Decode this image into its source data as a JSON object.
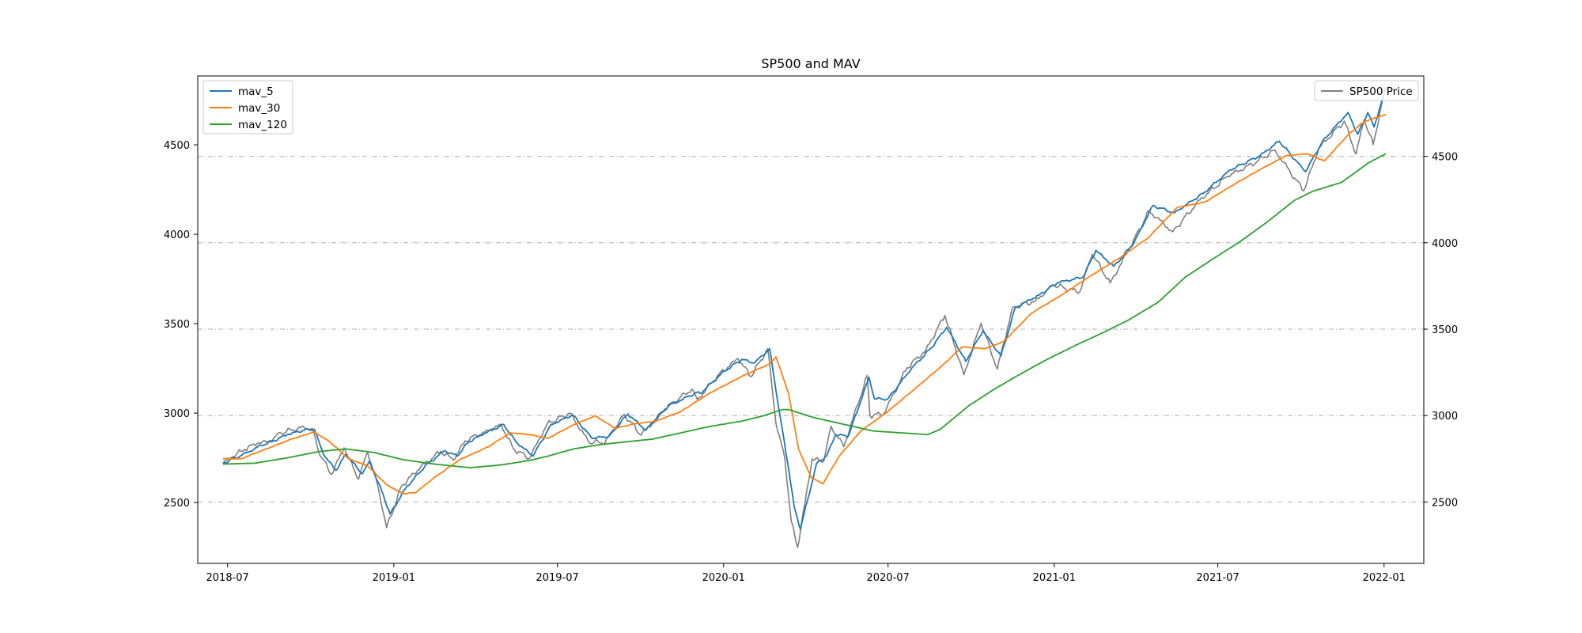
{
  "chart_data": {
    "type": "line",
    "title": "SP500 and MAV",
    "xlabel": "",
    "ylabel_left": "",
    "ylabel_right": "",
    "x_range": [
      "2018-05-29",
      "2022-02-14"
    ],
    "x_ticks": [
      "2018-07",
      "2019-01",
      "2019-07",
      "2020-01",
      "2020-07",
      "2021-01",
      "2021-07",
      "2022-01"
    ],
    "ylim_left": [
      2160,
      4885
    ],
    "ylim_right": [
      2145,
      4965
    ],
    "yticks_left": [
      2500,
      3000,
      3500,
      4000,
      4500
    ],
    "yticks_right": [
      2500,
      3000,
      3500,
      4000,
      4500
    ],
    "grid": "horizontal dash-dot on right axis",
    "legend_left": {
      "placement": "upper-left",
      "entries": [
        "mav_5",
        "mav_30",
        "mav_120"
      ]
    },
    "legend_right": {
      "placement": "upper-right",
      "entries": [
        "SP500 Price"
      ]
    },
    "series": [
      {
        "name": "SP500 Price",
        "axis": "right",
        "color": "#7f7f7f",
        "points": [
          [
            "2018-06-26",
            2724
          ],
          [
            "2018-07-06",
            2760
          ],
          [
            "2018-07-20",
            2805
          ],
          [
            "2018-08-03",
            2840
          ],
          [
            "2018-08-17",
            2850
          ],
          [
            "2018-08-29",
            2900
          ],
          [
            "2018-09-20",
            2930
          ],
          [
            "2018-10-03",
            2925
          ],
          [
            "2018-10-10",
            2785
          ],
          [
            "2018-10-24",
            2660
          ],
          [
            "2018-11-07",
            2813
          ],
          [
            "2018-11-23",
            2632
          ],
          [
            "2018-12-03",
            2790
          ],
          [
            "2018-12-14",
            2600
          ],
          [
            "2018-12-24",
            2351
          ],
          [
            "2019-01-10",
            2596
          ],
          [
            "2019-01-31",
            2704
          ],
          [
            "2019-02-22",
            2792
          ],
          [
            "2019-03-08",
            2743
          ],
          [
            "2019-03-21",
            2854
          ],
          [
            "2019-04-12",
            2907
          ],
          [
            "2019-04-30",
            2945
          ],
          [
            "2019-05-13",
            2811
          ],
          [
            "2019-05-31",
            2752
          ],
          [
            "2019-06-20",
            2954
          ],
          [
            "2019-07-15",
            3014
          ],
          [
            "2019-08-05",
            2844
          ],
          [
            "2019-08-23",
            2847
          ],
          [
            "2019-09-13",
            3007
          ],
          [
            "2019-10-02",
            2887
          ],
          [
            "2019-10-28",
            3039
          ],
          [
            "2019-11-27",
            3153
          ],
          [
            "2019-12-03",
            3093
          ],
          [
            "2019-12-27",
            3240
          ],
          [
            "2020-01-17",
            3330
          ],
          [
            "2020-01-31",
            3225
          ],
          [
            "2020-02-19",
            3386
          ],
          [
            "2020-02-28",
            2954
          ],
          [
            "2020-03-09",
            2746
          ],
          [
            "2020-03-16",
            2386
          ],
          [
            "2020-03-23",
            2237
          ],
          [
            "2020-04-08",
            2749
          ],
          [
            "2020-04-21",
            2736
          ],
          [
            "2020-04-29",
            2939
          ],
          [
            "2020-05-13",
            2820
          ],
          [
            "2020-06-08",
            3232
          ],
          [
            "2020-06-11",
            3002
          ],
          [
            "2020-06-26",
            3009
          ],
          [
            "2020-07-22",
            3276
          ],
          [
            "2020-08-12",
            3380
          ],
          [
            "2020-09-02",
            3580
          ],
          [
            "2020-09-23",
            3237
          ],
          [
            "2020-10-12",
            3534
          ],
          [
            "2020-10-30",
            3270
          ],
          [
            "2020-11-16",
            3627
          ],
          [
            "2020-12-11",
            3663
          ],
          [
            "2020-12-31",
            3756
          ],
          [
            "2021-01-29",
            3714
          ],
          [
            "2021-02-12",
            3934
          ],
          [
            "2021-03-04",
            3768
          ],
          [
            "2021-03-26",
            3974
          ],
          [
            "2021-04-16",
            4185
          ],
          [
            "2021-05-12",
            4063
          ],
          [
            "2021-06-11",
            4247
          ],
          [
            "2021-07-12",
            4385
          ],
          [
            "2021-08-13",
            4468
          ],
          [
            "2021-09-02",
            4537
          ],
          [
            "2021-10-04",
            4300
          ],
          [
            "2021-10-21",
            4549
          ],
          [
            "2021-11-18",
            4704
          ],
          [
            "2021-12-01",
            4513
          ],
          [
            "2021-12-10",
            4712
          ],
          [
            "2021-12-20",
            4568
          ],
          [
            "2021-12-29",
            4793
          ],
          [
            "2022-01-03",
            4900
          ]
        ]
      },
      {
        "name": "mav_5",
        "axis": "left",
        "color": "#1f77b4",
        "points": [
          [
            "2018-06-26",
            2720
          ],
          [
            "2018-07-10",
            2750
          ],
          [
            "2018-07-24",
            2782
          ],
          [
            "2018-08-07",
            2820
          ],
          [
            "2018-08-21",
            2845
          ],
          [
            "2018-09-05",
            2880
          ],
          [
            "2018-09-24",
            2905
          ],
          [
            "2018-10-05",
            2910
          ],
          [
            "2018-10-15",
            2770
          ],
          [
            "2018-10-29",
            2680
          ],
          [
            "2018-11-09",
            2770
          ],
          [
            "2018-11-27",
            2660
          ],
          [
            "2018-12-05",
            2730
          ],
          [
            "2018-12-19",
            2560
          ],
          [
            "2018-12-28",
            2435
          ],
          [
            "2019-01-14",
            2580
          ],
          [
            "2019-02-04",
            2700
          ],
          [
            "2019-02-26",
            2790
          ],
          [
            "2019-03-12",
            2760
          ],
          [
            "2019-03-25",
            2840
          ],
          [
            "2019-04-16",
            2900
          ],
          [
            "2019-05-03",
            2935
          ],
          [
            "2019-05-16",
            2840
          ],
          [
            "2019-06-04",
            2760
          ],
          [
            "2019-06-24",
            2935
          ],
          [
            "2019-07-18",
            2990
          ],
          [
            "2019-08-08",
            2860
          ],
          [
            "2019-08-27",
            2870
          ],
          [
            "2019-09-17",
            2995
          ],
          [
            "2019-10-07",
            2905
          ],
          [
            "2019-11-01",
            3040
          ],
          [
            "2019-12-02",
            3115
          ],
          [
            "2019-12-06",
            3110
          ],
          [
            "2020-01-02",
            3235
          ],
          [
            "2020-01-21",
            3300
          ],
          [
            "2020-02-04",
            3280
          ],
          [
            "2020-02-21",
            3360
          ],
          [
            "2020-03-03",
            3000
          ],
          [
            "2020-03-12",
            2720
          ],
          [
            "2020-03-19",
            2480
          ],
          [
            "2020-03-26",
            2350
          ],
          [
            "2020-04-13",
            2720
          ],
          [
            "2020-04-24",
            2760
          ],
          [
            "2020-05-04",
            2880
          ],
          [
            "2020-05-18",
            2870
          ],
          [
            "2020-06-10",
            3200
          ],
          [
            "2020-06-16",
            3080
          ],
          [
            "2020-07-01",
            3080
          ],
          [
            "2020-07-27",
            3250
          ],
          [
            "2020-08-17",
            3360
          ],
          [
            "2020-09-04",
            3480
          ],
          [
            "2020-09-25",
            3290
          ],
          [
            "2020-10-14",
            3460
          ],
          [
            "2020-11-03",
            3320
          ],
          [
            "2020-11-19",
            3590
          ],
          [
            "2020-12-15",
            3660
          ],
          [
            "2021-01-05",
            3730
          ],
          [
            "2021-02-02",
            3760
          ],
          [
            "2021-02-16",
            3910
          ],
          [
            "2021-03-08",
            3820
          ],
          [
            "2021-03-30",
            3950
          ],
          [
            "2021-04-20",
            4160
          ],
          [
            "2021-05-14",
            4120
          ],
          [
            "2021-06-15",
            4230
          ],
          [
            "2021-07-15",
            4360
          ],
          [
            "2021-08-17",
            4440
          ],
          [
            "2021-09-07",
            4520
          ],
          [
            "2021-10-06",
            4350
          ],
          [
            "2021-10-25",
            4520
          ],
          [
            "2021-11-22",
            4680
          ],
          [
            "2021-12-03",
            4560
          ],
          [
            "2021-12-14",
            4680
          ],
          [
            "2021-12-21",
            4600
          ],
          [
            "2022-01-03",
            4820
          ]
        ]
      },
      {
        "name": "mav_30",
        "axis": "left",
        "color": "#ff7f0e",
        "points": [
          [
            "2018-06-26",
            2745
          ],
          [
            "2018-07-16",
            2745
          ],
          [
            "2018-08-13",
            2800
          ],
          [
            "2018-09-10",
            2855
          ],
          [
            "2018-10-05",
            2895
          ],
          [
            "2018-10-22",
            2840
          ],
          [
            "2018-11-12",
            2745
          ],
          [
            "2018-12-03",
            2705
          ],
          [
            "2018-12-24",
            2600
          ],
          [
            "2019-01-11",
            2550
          ],
          [
            "2019-01-25",
            2555
          ],
          [
            "2019-02-15",
            2640
          ],
          [
            "2019-03-15",
            2740
          ],
          [
            "2019-04-15",
            2810
          ],
          [
            "2019-05-10",
            2890
          ],
          [
            "2019-05-31",
            2880
          ],
          [
            "2019-06-21",
            2860
          ],
          [
            "2019-07-19",
            2935
          ],
          [
            "2019-08-12",
            2985
          ],
          [
            "2019-09-03",
            2915
          ],
          [
            "2019-09-24",
            2940
          ],
          [
            "2019-10-18",
            2955
          ],
          [
            "2019-11-15",
            3010
          ],
          [
            "2019-12-16",
            3110
          ],
          [
            "2020-01-21",
            3205
          ],
          [
            "2020-02-21",
            3275
          ],
          [
            "2020-02-28",
            3315
          ],
          [
            "2020-03-13",
            3110
          ],
          [
            "2020-03-24",
            2800
          ],
          [
            "2020-04-07",
            2640
          ],
          [
            "2020-04-20",
            2605
          ],
          [
            "2020-05-08",
            2760
          ],
          [
            "2020-06-01",
            2900
          ],
          [
            "2020-07-01",
            3010
          ],
          [
            "2020-08-03",
            3150
          ],
          [
            "2020-08-31",
            3270
          ],
          [
            "2020-09-21",
            3370
          ],
          [
            "2020-10-16",
            3360
          ],
          [
            "2020-11-06",
            3400
          ],
          [
            "2020-12-07",
            3560
          ],
          [
            "2021-01-06",
            3650
          ],
          [
            "2021-02-08",
            3760
          ],
          [
            "2021-03-12",
            3860
          ],
          [
            "2021-04-15",
            3980
          ],
          [
            "2021-05-17",
            4150
          ],
          [
            "2021-06-17",
            4180
          ],
          [
            "2021-07-16",
            4270
          ],
          [
            "2021-08-16",
            4360
          ],
          [
            "2021-09-15",
            4440
          ],
          [
            "2021-10-08",
            4450
          ],
          [
            "2021-10-27",
            4410
          ],
          [
            "2021-11-23",
            4560
          ],
          [
            "2021-12-10",
            4630
          ],
          [
            "2022-01-03",
            4670
          ]
        ]
      },
      {
        "name": "mav_120",
        "axis": "left",
        "color": "#2ca02c",
        "points": [
          [
            "2018-06-26",
            2715
          ],
          [
            "2018-07-31",
            2720
          ],
          [
            "2018-09-05",
            2750
          ],
          [
            "2018-10-10",
            2785
          ],
          [
            "2018-11-09",
            2800
          ],
          [
            "2018-12-10",
            2780
          ],
          [
            "2019-01-11",
            2740
          ],
          [
            "2019-02-15",
            2715
          ],
          [
            "2019-03-26",
            2695
          ],
          [
            "2019-04-29",
            2710
          ],
          [
            "2019-05-31",
            2735
          ],
          [
            "2019-06-21",
            2760
          ],
          [
            "2019-07-19",
            2800
          ],
          [
            "2019-08-19",
            2825
          ],
          [
            "2019-09-16",
            2840
          ],
          [
            "2019-10-15",
            2855
          ],
          [
            "2019-11-15",
            2890
          ],
          [
            "2019-12-16",
            2925
          ],
          [
            "2020-01-21",
            2955
          ],
          [
            "2020-02-14",
            2985
          ],
          [
            "2020-03-06",
            3020
          ],
          [
            "2020-03-13",
            3020
          ],
          [
            "2020-04-10",
            2975
          ],
          [
            "2020-05-15",
            2935
          ],
          [
            "2020-06-15",
            2900
          ],
          [
            "2020-07-15",
            2890
          ],
          [
            "2020-08-14",
            2880
          ],
          [
            "2020-08-28",
            2910
          ],
          [
            "2020-09-28",
            3040
          ],
          [
            "2020-10-27",
            3135
          ],
          [
            "2020-11-25",
            3220
          ],
          [
            "2020-12-24",
            3300
          ],
          [
            "2021-01-25",
            3380
          ],
          [
            "2021-02-24",
            3450
          ],
          [
            "2021-03-24",
            3520
          ],
          [
            "2021-04-26",
            3620
          ],
          [
            "2021-05-26",
            3760
          ],
          [
            "2021-06-25",
            3860
          ],
          [
            "2021-07-26",
            3960
          ],
          [
            "2021-08-25",
            4070
          ],
          [
            "2021-09-24",
            4190
          ],
          [
            "2021-10-14",
            4240
          ],
          [
            "2021-11-15",
            4290
          ],
          [
            "2021-12-15",
            4400
          ],
          [
            "2022-01-03",
            4450
          ]
        ]
      }
    ]
  }
}
